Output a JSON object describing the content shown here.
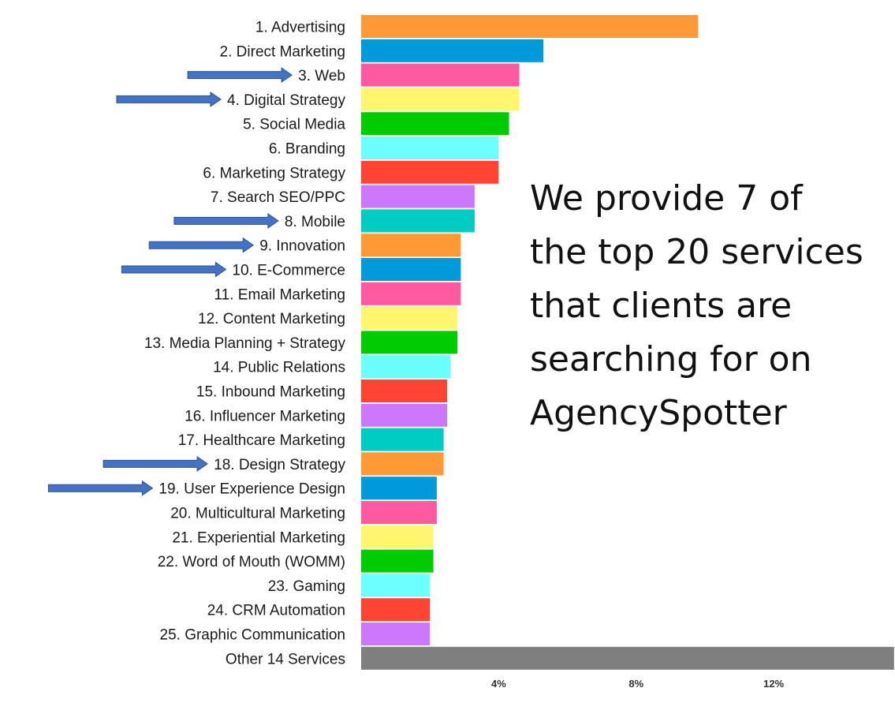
{
  "chart_data": {
    "type": "bar",
    "orientation": "horizontal",
    "unit": "%",
    "xlim": [
      0,
      15.5
    ],
    "x_ticks": [
      {
        "value": 4,
        "label": "4%"
      },
      {
        "value": 8,
        "label": "8%"
      },
      {
        "value": 12,
        "label": "12%"
      }
    ],
    "grid": false,
    "categories": [
      "1. Advertising",
      "2. Direct Marketing",
      "3. Web",
      "4. Digital Strategy",
      "5. Social Media",
      "6. Branding",
      "6. Marketing Strategy",
      "7. Search SEO/PPC",
      "8. Mobile",
      "9. Innovation",
      "10. E-Commerce",
      "11. Email Marketing",
      "12. Content Marketing",
      "13. Media Planning + Strategy",
      "14. Public Relations",
      "15. Inbound Marketing",
      "16. Influencer Marketing",
      "17. Healthcare Marketing",
      "18. Design Strategy",
      "19. User Experience Design",
      "20. Multicultural Marketing",
      "21. Experiential Marketing",
      "22. Word of Mouth (WOMM)",
      "23. Gaming",
      "24. CRM Automation",
      "25. Graphic Communication",
      "Other 14 Services"
    ],
    "values": [
      9.8,
      5.3,
      4.6,
      4.6,
      4.3,
      4.0,
      4.0,
      3.3,
      3.3,
      2.9,
      2.9,
      2.9,
      2.8,
      2.8,
      2.6,
      2.5,
      2.5,
      2.4,
      2.4,
      2.2,
      2.2,
      2.1,
      2.1,
      2.0,
      2.0,
      2.0,
      15.5
    ],
    "colors": [
      "#FF9933",
      "#0099D9",
      "#FF5AA0",
      "#FFF56E",
      "#00CC00",
      "#6BFFFF",
      "#FF4433",
      "#CC77FF",
      "#00CCC4",
      "#FF9933",
      "#0099D9",
      "#FF5AA0",
      "#FFF56E",
      "#00CC00",
      "#6BFFFF",
      "#FF4433",
      "#CC77FF",
      "#00CCC4",
      "#FF9933",
      "#0099D9",
      "#FF5AA0",
      "#FFF56E",
      "#00CC00",
      "#6BFFFF",
      "#FF4433",
      "#CC77FF",
      "#7F7F80"
    ],
    "arrow_color": "#4472C4",
    "highlighted_categories": [
      "3. Web",
      "4. Digital Strategy",
      "8. Mobile",
      "9. Innovation",
      "10. E-Commerce",
      "18. Design Strategy",
      "19. User Experience Design"
    ],
    "annotation": [
      "We provide 7 of",
      "the top 20 services",
      "that clients are",
      "searching for on",
      "AgencySpotter"
    ]
  }
}
